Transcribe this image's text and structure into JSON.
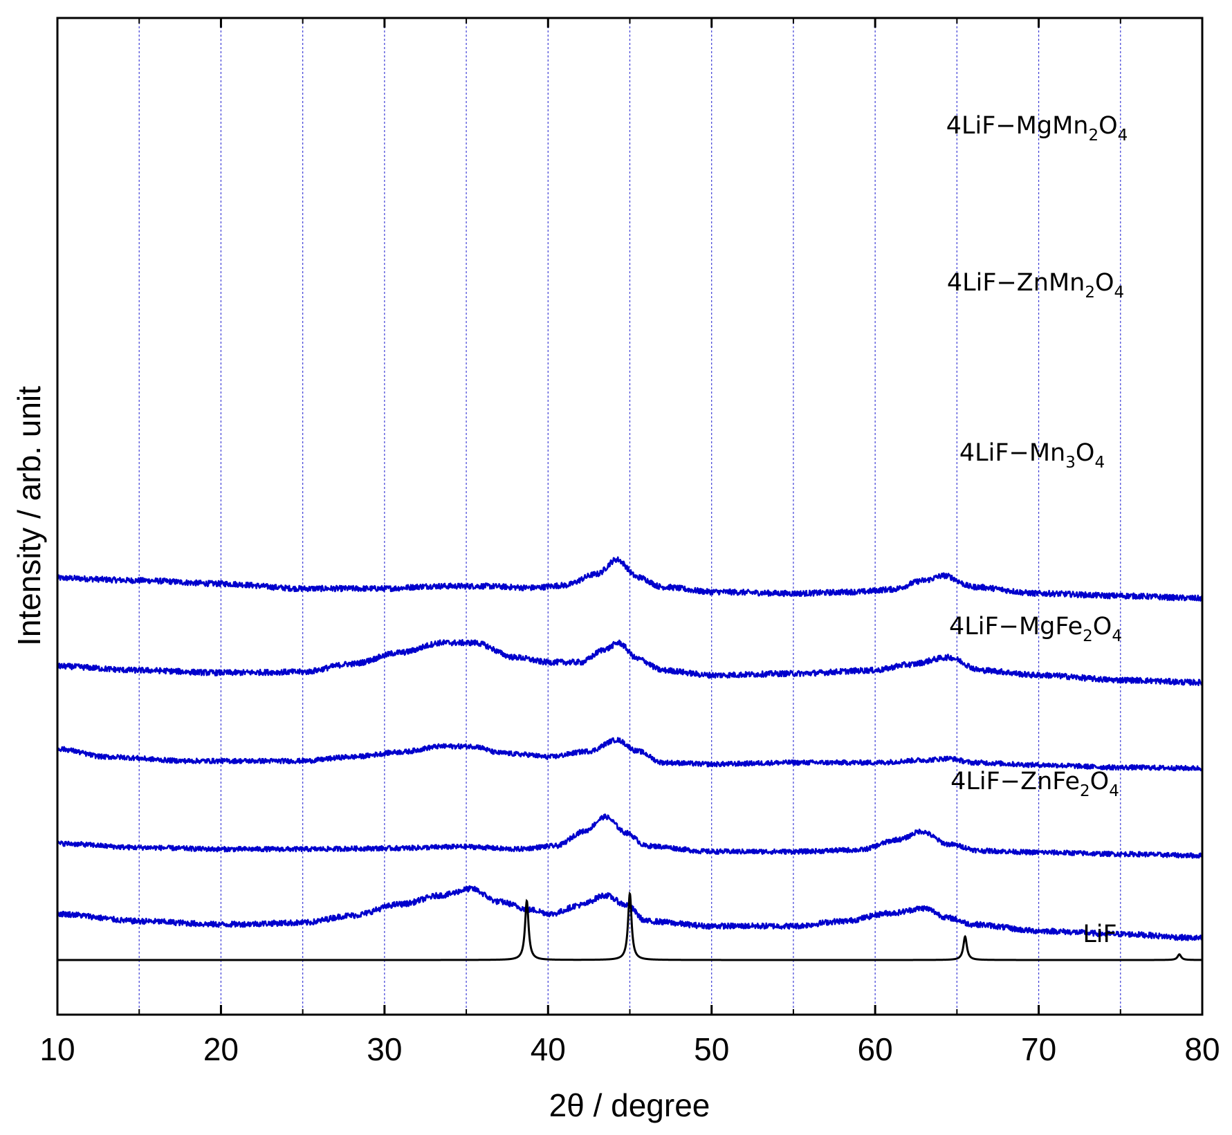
{
  "chart_data": {
    "type": "line",
    "title": "",
    "xlabel": "2θ / degree",
    "ylabel": "Intensity / arb. unit",
    "xlim": [
      10,
      80
    ],
    "x_ticks": [
      "10",
      "20",
      "30",
      "40",
      "50",
      "60",
      "70",
      "80"
    ],
    "x_gridlines": [
      15,
      20,
      25,
      30,
      35,
      40,
      45,
      50,
      55,
      60,
      65,
      70,
      75
    ],
    "grid": true,
    "y_tick_labels": false,
    "colors": {
      "sample": "#0000cc",
      "reference": "#000000",
      "grid": "#3b3bd6"
    },
    "series": [
      {
        "name": "4LiF−MgMn2O4",
        "label_parts": [
          [
            "4LiF−MgMn",
            "n"
          ],
          [
            "2",
            "s"
          ],
          [
            "O",
            "n"
          ],
          [
            "4",
            "s"
          ]
        ],
        "color": "#0000cc",
        "offset": 4.45,
        "noise": 0.035,
        "points": [
          [
            10,
            0.27
          ],
          [
            15,
            0.24
          ],
          [
            20,
            0.2
          ],
          [
            25,
            0.14
          ],
          [
            30,
            0.14
          ],
          [
            33,
            0.17
          ],
          [
            36,
            0.17
          ],
          [
            39,
            0.15
          ],
          [
            41,
            0.18
          ],
          [
            43,
            0.32
          ],
          [
            44.2,
            0.5
          ],
          [
            45.5,
            0.28
          ],
          [
            47,
            0.16
          ],
          [
            50,
            0.1
          ],
          [
            55,
            0.08
          ],
          [
            59,
            0.1
          ],
          [
            61,
            0.13
          ],
          [
            63,
            0.24
          ],
          [
            64.2,
            0.3
          ],
          [
            66,
            0.16
          ],
          [
            70,
            0.08
          ],
          [
            75,
            0.05
          ],
          [
            80,
            0.02
          ]
        ]
      },
      {
        "name": "4LiF−ZnMn2O4",
        "label_parts": [
          [
            "4LiF−ZnMn",
            "n"
          ],
          [
            "2",
            "s"
          ],
          [
            "O",
            "n"
          ],
          [
            "4",
            "s"
          ]
        ],
        "color": "#0000cc",
        "offset": 3.38,
        "noise": 0.035,
        "points": [
          [
            10,
            0.25
          ],
          [
            15,
            0.2
          ],
          [
            20,
            0.17
          ],
          [
            25,
            0.18
          ],
          [
            28,
            0.28
          ],
          [
            31,
            0.42
          ],
          [
            33.5,
            0.54
          ],
          [
            35.5,
            0.54
          ],
          [
            38,
            0.36
          ],
          [
            40,
            0.3
          ],
          [
            42,
            0.3
          ],
          [
            43.5,
            0.46
          ],
          [
            44.3,
            0.54
          ],
          [
            45.5,
            0.34
          ],
          [
            47,
            0.2
          ],
          [
            50,
            0.14
          ],
          [
            55,
            0.16
          ],
          [
            60,
            0.2
          ],
          [
            62,
            0.27
          ],
          [
            64.5,
            0.36
          ],
          [
            66.5,
            0.2
          ],
          [
            70,
            0.14
          ],
          [
            75,
            0.08
          ],
          [
            80,
            0.05
          ]
        ]
      },
      {
        "name": "4LiF−Mn3O4",
        "label_parts": [
          [
            "4LiF−Mn",
            "n"
          ],
          [
            "3",
            "s"
          ],
          [
            "O",
            "n"
          ],
          [
            "4",
            "s"
          ]
        ],
        "color": "#0000cc",
        "offset": 2.34,
        "noise": 0.03,
        "points": [
          [
            10,
            0.27
          ],
          [
            13,
            0.17
          ],
          [
            18,
            0.12
          ],
          [
            25,
            0.12
          ],
          [
            28,
            0.17
          ],
          [
            31,
            0.23
          ],
          [
            33.5,
            0.3
          ],
          [
            35.5,
            0.3
          ],
          [
            37,
            0.22
          ],
          [
            38.5,
            0.2
          ],
          [
            40,
            0.17
          ],
          [
            42.5,
            0.24
          ],
          [
            44.2,
            0.38
          ],
          [
            45.5,
            0.24
          ],
          [
            47,
            0.1
          ],
          [
            50,
            0.08
          ],
          [
            55,
            0.1
          ],
          [
            60,
            0.1
          ],
          [
            63,
            0.13
          ],
          [
            64.5,
            0.15
          ],
          [
            66,
            0.1
          ],
          [
            70,
            0.07
          ],
          [
            75,
            0.04
          ],
          [
            80,
            0.03
          ]
        ]
      },
      {
        "name": "4LiF−MgFe2O4",
        "label_parts": [
          [
            "4LiF−MgFe",
            "n"
          ],
          [
            "2",
            "s"
          ],
          [
            "O",
            "n"
          ],
          [
            "4",
            "s"
          ]
        ],
        "color": "#0000cc",
        "offset": 1.29,
        "noise": 0.03,
        "points": [
          [
            10,
            0.15
          ],
          [
            15,
            0.1
          ],
          [
            20,
            0.08
          ],
          [
            25,
            0.08
          ],
          [
            30,
            0.09
          ],
          [
            35,
            0.11
          ],
          [
            38,
            0.08
          ],
          [
            40.5,
            0.12
          ],
          [
            42.2,
            0.3
          ],
          [
            43.5,
            0.48
          ],
          [
            44.8,
            0.28
          ],
          [
            46,
            0.12
          ],
          [
            50,
            0.05
          ],
          [
            55,
            0.05
          ],
          [
            59,
            0.07
          ],
          [
            61.5,
            0.2
          ],
          [
            62.8,
            0.3
          ],
          [
            64.5,
            0.14
          ],
          [
            66.5,
            0.06
          ],
          [
            70,
            0.04
          ],
          [
            75,
            0.02
          ],
          [
            80,
            0
          ]
        ]
      },
      {
        "name": "4LiF−ZnFe2O4",
        "label_parts": [
          [
            "4LiF−ZnFe",
            "n"
          ],
          [
            "2",
            "s"
          ],
          [
            "O",
            "n"
          ],
          [
            "4",
            "s"
          ]
        ],
        "color": "#0000cc",
        "offset": 0.22,
        "noise": 0.035,
        "points": [
          [
            10,
            0.35
          ],
          [
            15,
            0.26
          ],
          [
            20,
            0.22
          ],
          [
            25,
            0.24
          ],
          [
            28,
            0.33
          ],
          [
            31,
            0.47
          ],
          [
            33.5,
            0.58
          ],
          [
            35.3,
            0.66
          ],
          [
            37,
            0.5
          ],
          [
            39,
            0.4
          ],
          [
            40.2,
            0.35
          ],
          [
            42,
            0.46
          ],
          [
            43.5,
            0.58
          ],
          [
            44.8,
            0.46
          ],
          [
            46,
            0.26
          ],
          [
            50,
            0.2
          ],
          [
            55,
            0.2
          ],
          [
            58,
            0.26
          ],
          [
            61,
            0.36
          ],
          [
            63,
            0.42
          ],
          [
            64.5,
            0.3
          ],
          [
            66,
            0.22
          ],
          [
            70,
            0.14
          ],
          [
            75,
            0.1
          ],
          [
            80,
            0.05
          ]
        ]
      },
      {
        "name": "LiF",
        "label_parts": [
          [
            "LiF",
            "n"
          ]
        ],
        "color": "#000000",
        "offset": 0,
        "noise": 0,
        "baseline": 0,
        "peaks": [
          [
            38.7,
            0.73
          ],
          [
            45.0,
            0.82
          ],
          [
            65.5,
            0.29
          ],
          [
            78.6,
            0.07
          ]
        ],
        "peak_width": 0.13
      }
    ]
  }
}
